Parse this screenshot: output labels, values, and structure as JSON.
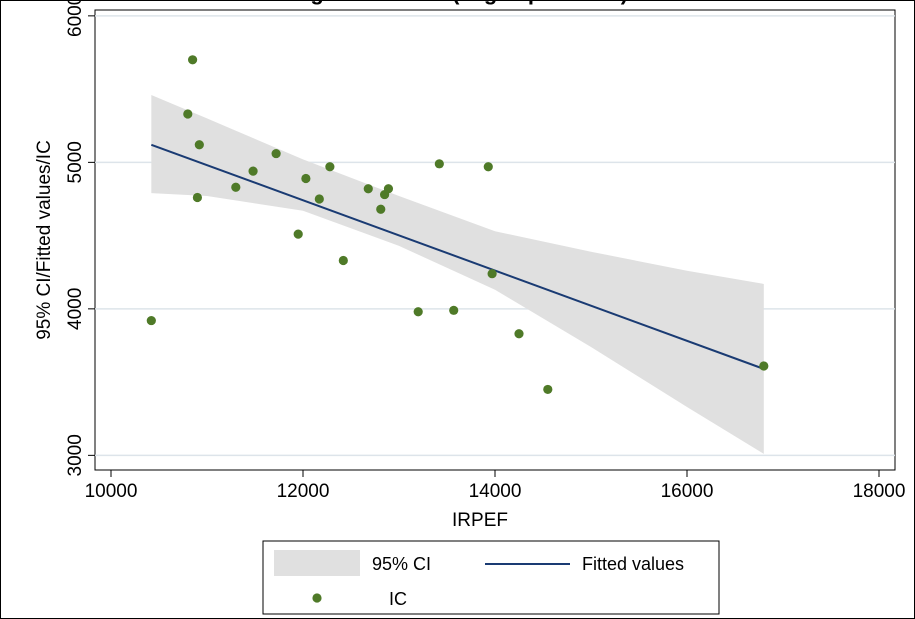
{
  "chart_data": {
    "type": "scatter",
    "title": "... g ... ... ... ... ... (... g ... p ... ... ... )",
    "xlabel": "IRPEF",
    "ylabel": "95% CI/Fitted values/IC",
    "xlim": [
      10000,
      18000
    ],
    "ylim": [
      3000,
      6000
    ],
    "x_ticks": [
      "10000",
      "12000",
      "14000",
      "16000",
      "18000"
    ],
    "y_ticks": [
      "3000",
      "4000",
      "5000",
      "6000"
    ],
    "grid": true,
    "legend_position": "bottom",
    "legend": [
      "95% CI",
      "Fitted values",
      "IC"
    ],
    "colors": {
      "ci_band": "#e0e0e0",
      "fitted_line": "#1a3b73",
      "points": "#4f7a28",
      "grid": "#dde4ea"
    },
    "series": [
      {
        "name": "IC",
        "type": "scatter",
        "x": [
          10420,
          10800,
          10850,
          10900,
          10920,
          11300,
          11480,
          11720,
          11950,
          12030,
          12170,
          12280,
          12420,
          12680,
          12810,
          12850,
          12890,
          13200,
          13420,
          13570,
          13930,
          13970,
          14250,
          14550,
          16800
        ],
        "y": [
          3920,
          5330,
          5700,
          4760,
          5120,
          4830,
          4940,
          5060,
          4510,
          4890,
          4750,
          4970,
          4330,
          4820,
          4680,
          4780,
          4820,
          3980,
          4990,
          3990,
          4970,
          4240,
          3830,
          3450,
          3610
        ]
      },
      {
        "name": "Fitted values",
        "type": "line",
        "x": [
          10420,
          16800
        ],
        "y": [
          5120,
          3590
        ]
      },
      {
        "name": "95% CI",
        "type": "band",
        "x": [
          10420,
          11000,
          12000,
          13000,
          14000,
          15000,
          16000,
          16800
        ],
        "lower": [
          4790,
          4770,
          4670,
          4430,
          4130,
          3740,
          3330,
          3010
        ],
        "upper": [
          5460,
          5300,
          5020,
          4770,
          4530,
          4390,
          4260,
          4170
        ]
      }
    ]
  }
}
